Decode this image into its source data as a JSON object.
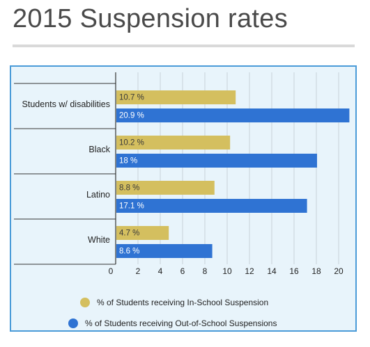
{
  "page": {
    "title": "2015 Suspension rates"
  },
  "colors": {
    "in_school": "#d4bf5f",
    "out_of_school": "#2f73d3",
    "panel_bg": "#e8f4fb",
    "panel_border": "#4a9bd8",
    "grid": "#c8d2da",
    "axis": "#333333"
  },
  "chart_data": {
    "type": "bar",
    "orientation": "horizontal",
    "categories": [
      "Students w/ disabilities",
      "Black",
      "Latino",
      "White"
    ],
    "series": [
      {
        "name": "% of Students receiving In-School Suspension",
        "values": [
          10.7,
          10.2,
          8.8,
          4.7
        ],
        "labels": [
          "10.7 %",
          "10.2 %",
          "8.8 %",
          "4.7 %"
        ],
        "color": "#d4bf5f"
      },
      {
        "name": "% of Students receiving Out-of-School Suspensions",
        "values": [
          20.9,
          18,
          17.1,
          8.6
        ],
        "labels": [
          "20.9 %",
          "18 %",
          "17.1 %",
          "8.6 %"
        ],
        "color": "#2f73d3"
      }
    ],
    "x_ticks": [
      "0",
      "2",
      "4",
      "6",
      "8",
      "10",
      "12",
      "14",
      "16",
      "18",
      "20"
    ],
    "xlim": [
      0,
      22
    ],
    "grid": true,
    "legend_position": "bottom"
  }
}
